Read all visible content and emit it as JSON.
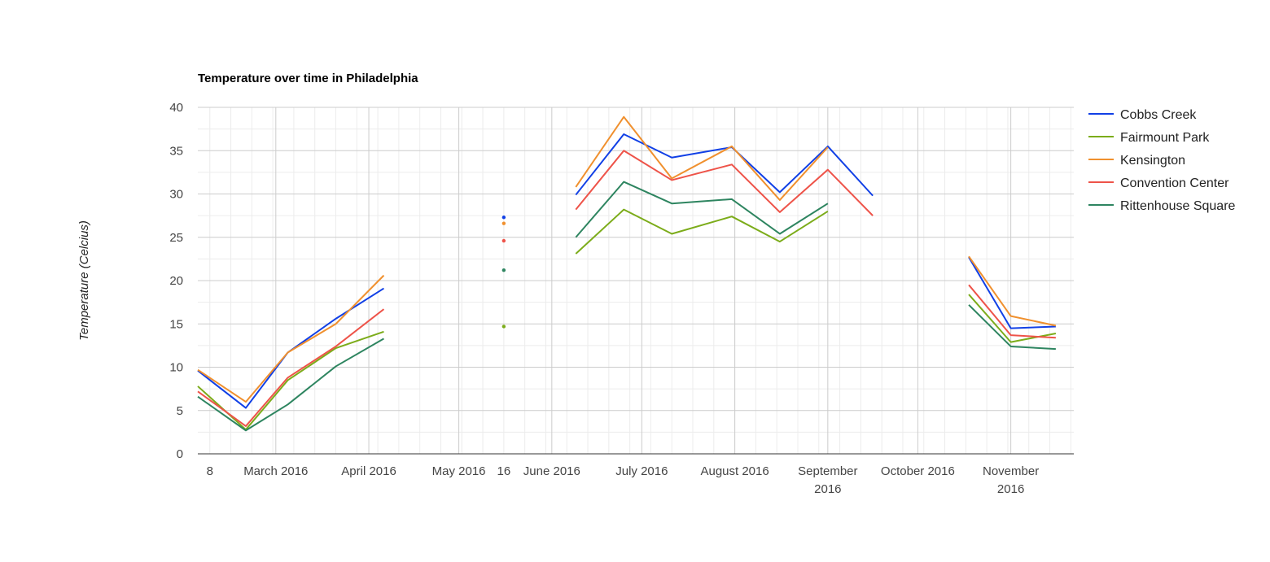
{
  "chart_data": {
    "type": "line",
    "title": "Temperature over time in Philadelphia",
    "xlabel": "",
    "ylabel": "Temperature (Celcius)",
    "ylim": [
      0,
      40
    ],
    "yticks": [
      "0",
      "5",
      "10",
      "15",
      "20",
      "25",
      "30",
      "35",
      "40"
    ],
    "xlim": [
      "2016-02-04",
      "2016-11-22"
    ],
    "xticks": [
      {
        "date": "2016-02-08",
        "label": "8"
      },
      {
        "date": "2016-03-01",
        "label": "March 2016"
      },
      {
        "date": "2016-04-01",
        "label": "April 2016"
      },
      {
        "date": "2016-05-01",
        "label": "May 2016"
      },
      {
        "date": "2016-05-16",
        "label": "16"
      },
      {
        "date": "2016-06-01",
        "label": "June 2016"
      },
      {
        "date": "2016-07-01",
        "label": "July 2016"
      },
      {
        "date": "2016-08-01",
        "label": "August 2016"
      },
      {
        "date": "2016-09-01",
        "label": "September 2016"
      },
      {
        "date": "2016-10-01",
        "label": "October 2016"
      },
      {
        "date": "2016-11-01",
        "label": "November 2016"
      }
    ],
    "grid": true,
    "legend_position": "right",
    "dates": [
      "2016-02-04",
      "2016-02-20",
      "2016-03-05",
      "2016-03-21",
      "2016-04-06",
      "2016-05-16",
      "2016-06-09",
      "2016-06-25",
      "2016-07-11",
      "2016-07-31",
      "2016-08-16",
      "2016-09-01",
      "2016-09-16",
      "2016-10-02",
      "2016-10-18",
      "2016-11-01",
      "2016-11-16"
    ],
    "series": [
      {
        "name": "Cobbs Creek",
        "color": "#1140e6",
        "values": [
          9.6,
          5.3,
          11.7,
          15.6,
          19.1,
          27.3,
          29.9,
          36.9,
          34.2,
          35.4,
          30.2,
          35.5,
          29.8,
          null,
          22.7,
          14.5,
          14.7
        ]
      },
      {
        "name": "Fairmount Park",
        "color": "#7cac1a",
        "values": [
          7.8,
          2.8,
          8.5,
          12.2,
          14.1,
          14.7,
          23.1,
          28.2,
          25.4,
          27.4,
          24.5,
          28.0,
          null,
          null,
          18.4,
          12.9,
          13.9
        ]
      },
      {
        "name": "Kensington",
        "color": "#f0902e",
        "values": [
          9.7,
          6.0,
          11.7,
          15.0,
          20.6,
          26.6,
          30.8,
          38.9,
          31.8,
          35.5,
          29.3,
          35.4,
          null,
          null,
          22.8,
          15.9,
          14.8
        ]
      },
      {
        "name": "Convention Center",
        "color": "#ee5349",
        "values": [
          7.2,
          3.2,
          8.8,
          12.4,
          16.7,
          24.6,
          28.2,
          35.0,
          31.6,
          33.4,
          27.9,
          32.8,
          27.5,
          null,
          19.5,
          13.7,
          13.4
        ]
      },
      {
        "name": "Rittenhouse Square",
        "color": "#2e8560",
        "values": [
          6.6,
          2.7,
          5.7,
          10.1,
          13.3,
          21.2,
          25.0,
          31.4,
          28.9,
          29.4,
          25.4,
          28.9,
          null,
          null,
          17.2,
          12.4,
          12.1
        ]
      }
    ]
  }
}
